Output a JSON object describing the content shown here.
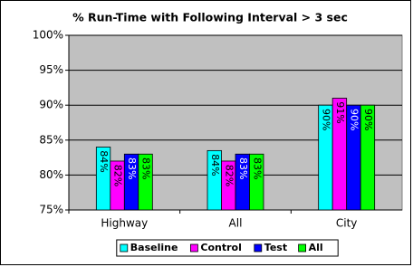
{
  "chart_data": {
    "type": "bar",
    "title": "%  Run-Time with Following Interval > 3 sec",
    "categories": [
      "Highway",
      "All",
      "City"
    ],
    "series": [
      {
        "name": "Baseline",
        "color": "#00ffff",
        "values": [
          84,
          83.5,
          90
        ],
        "value_labels": [
          "84%",
          "84%",
          "90%"
        ]
      },
      {
        "name": "Control",
        "color": "#ff00ff",
        "values": [
          82,
          82,
          91
        ],
        "value_labels": [
          "82%",
          "82%",
          "91%"
        ]
      },
      {
        "name": "Test",
        "color": "#0000ff",
        "values": [
          83,
          83,
          90
        ],
        "value_labels": [
          "83%",
          "83%",
          "90%"
        ]
      },
      {
        "name": "All",
        "color": "#00ff00",
        "values": [
          83,
          83,
          90
        ],
        "value_labels": [
          "83%",
          "83%",
          "90%"
        ]
      }
    ],
    "ylim": [
      75,
      100
    ],
    "yticks": [
      {
        "value": 75,
        "label": "75%"
      },
      {
        "value": 80,
        "label": "80%"
      },
      {
        "value": 85,
        "label": "85%"
      },
      {
        "value": 90,
        "label": "90%"
      },
      {
        "value": 95,
        "label": "95%"
      },
      {
        "value": 100,
        "label": "100%"
      }
    ],
    "grid": true,
    "legend": "bottom",
    "plot_background": "#c0c0c0"
  }
}
